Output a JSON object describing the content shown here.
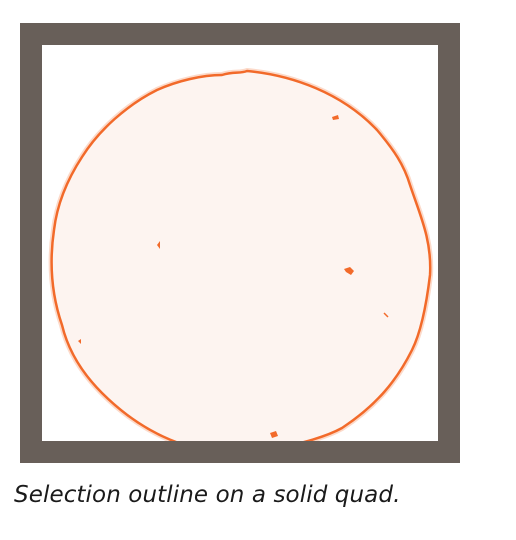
{
  "figure": {
    "caption": "Selection outline on a solid quad."
  },
  "colors": {
    "frame": "#685f59",
    "background": "#ffffff",
    "selection_outline": "#f26a2a",
    "selection_fill": "#fdf4f0"
  }
}
